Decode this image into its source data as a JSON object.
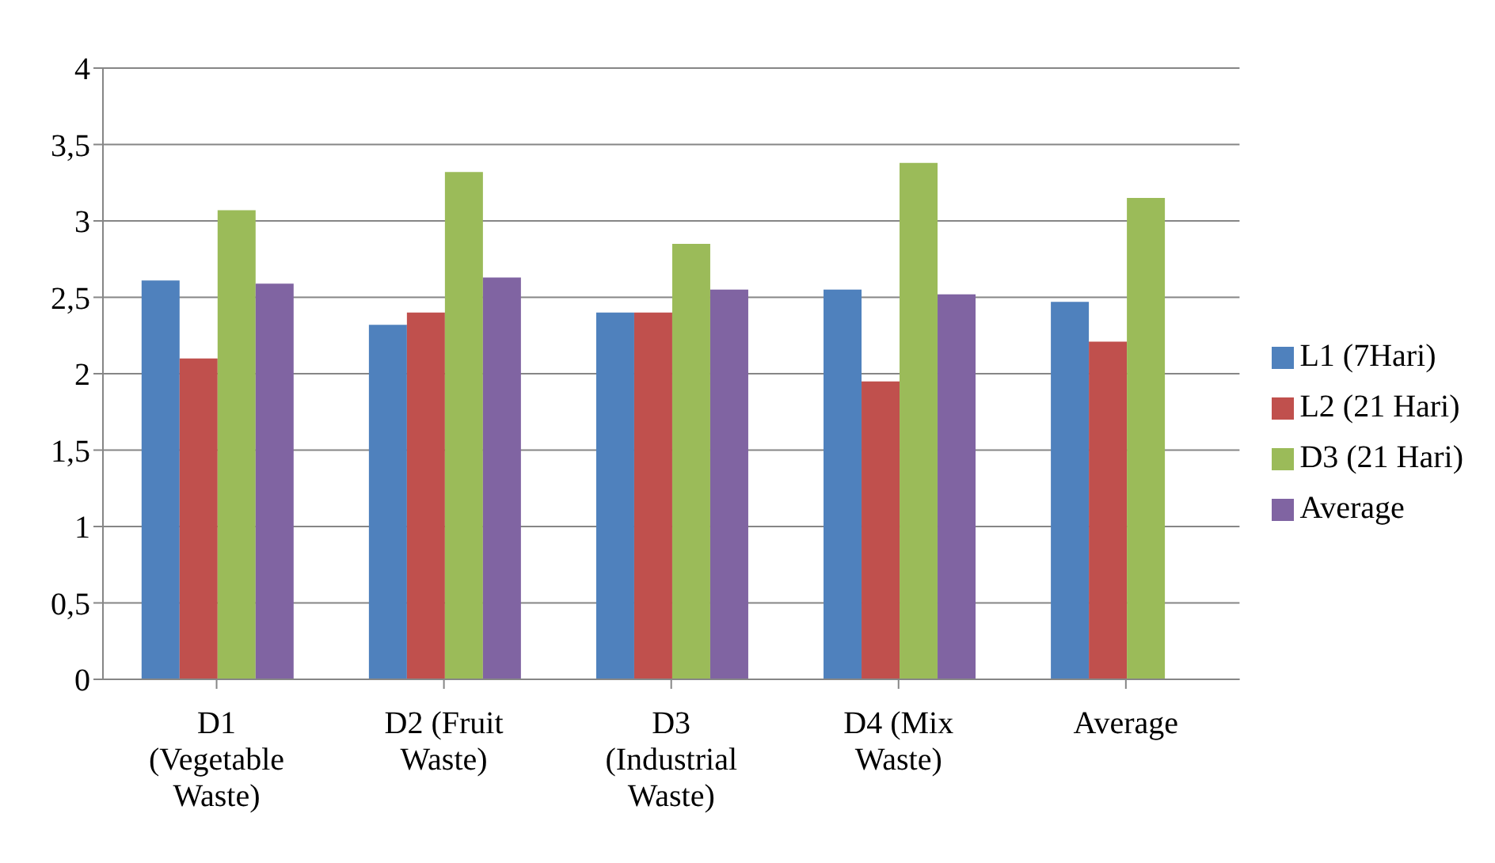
{
  "chart_data": {
    "type": "bar",
    "categories": [
      "D1 (Vegetable Waste)",
      "D2 (Fruit Waste)",
      "D3 (Industrial Waste)",
      "D4 (Mix Waste)",
      "Average"
    ],
    "series": [
      {
        "name": "L1 (7Hari)",
        "color": "#4f81bd",
        "values": [
          2.61,
          2.32,
          2.4,
          2.55,
          2.47
        ]
      },
      {
        "name": "L2 (21 Hari)",
        "color": "#c0504d",
        "values": [
          2.1,
          2.4,
          2.4,
          1.95,
          2.21
        ]
      },
      {
        "name": "D3 (21 Hari)",
        "color": "#9bbb59",
        "values": [
          3.07,
          3.32,
          2.85,
          3.38,
          3.15
        ]
      },
      {
        "name": "Average",
        "color": "#8064a2",
        "values": [
          2.59,
          2.63,
          2.55,
          2.52,
          null
        ]
      }
    ],
    "ylim": [
      0,
      4
    ],
    "yticks": [
      0,
      {
        "value": 0.5,
        "label": "0,5"
      },
      1,
      {
        "value": 1.5,
        "label": "1,5"
      },
      2,
      {
        "value": 2.5,
        "label": "2,5"
      },
      3,
      {
        "value": 3.5,
        "label": "3,5"
      },
      4
    ],
    "grid": "y",
    "legend": "right"
  }
}
